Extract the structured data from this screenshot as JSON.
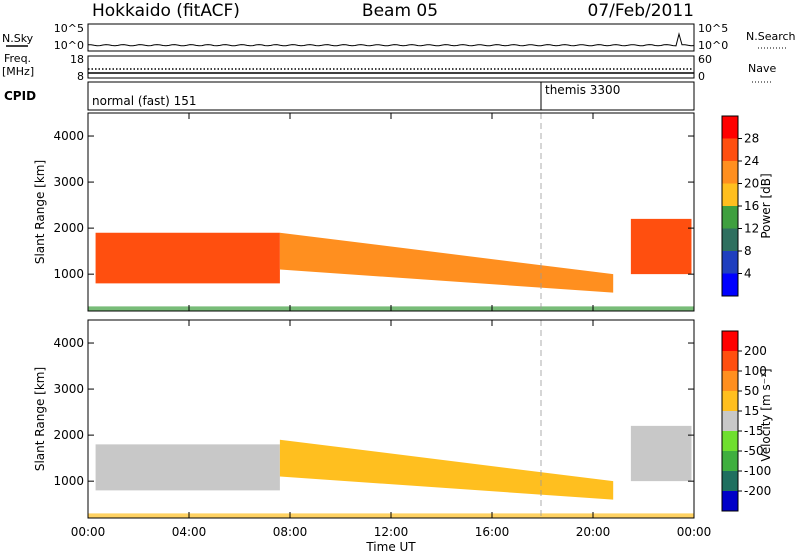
{
  "header": {
    "station": "Hokkaido (fitACF)",
    "beam": "Beam 05",
    "date": "07/Feb/2011"
  },
  "top_panels": {
    "nsky_label": "N.Sky",
    "nsearch_label": "N.Search",
    "ticks_left": [
      "10^5",
      "10^0"
    ],
    "ticks_right": [
      "10^5",
      "10^0"
    ],
    "freq_label": "Freq.",
    "freq_unit": "[MHz]",
    "freq_ticks": [
      "18",
      "8"
    ],
    "nave_label": "Nave",
    "nave_ticks": [
      "60",
      "0"
    ],
    "cpid_label": "CPID",
    "cpid_left": "normal (fast) 151",
    "cpid_right": "themis 3300"
  },
  "colors": {
    "power_scale": [
      "#0000ff",
      "#1f3fbf",
      "#2f6f5f",
      "#3f9f3f",
      "#ffbf1f",
      "#ff8f1f",
      "#ff4f0f",
      "#ff0000"
    ],
    "velocity_scale": [
      "#0000c8",
      "#1f6f5f",
      "#3faf3f",
      "#6fdf2f",
      "#c8c8c8",
      "#ffbf1f",
      "#ff8f1f",
      "#ff4f0f",
      "#ff0000"
    ],
    "ground_scatter": "#c8c8c8"
  },
  "chart_data": [
    {
      "type": "heatmap",
      "title": "",
      "xlabel": "",
      "ylabel": "Slant Range [km]",
      "xlim": [
        0,
        24
      ],
      "ylim": [
        200,
        4500
      ],
      "x_ticks": [
        0,
        4,
        8,
        12,
        16,
        20,
        24
      ],
      "y_ticks": [
        1000,
        2000,
        3000,
        4000
      ],
      "y_tick_labels": [
        "1000",
        "2000",
        "3000",
        "4000"
      ],
      "colorbar": {
        "label": "Power [dB]",
        "range": [
          0,
          32
        ],
        "ticks": [
          "28",
          "24",
          "20",
          "16",
          "12",
          "8",
          "4"
        ]
      },
      "bands": [
        {
          "name": "morning-scatter",
          "t0": 0.3,
          "t1": 7.6,
          "r_lo": 800,
          "r_hi": 1900,
          "value": 26
        },
        {
          "name": "mid-scatter",
          "t0": 7.6,
          "t1": 20.8,
          "r_lo_start": 1100,
          "r_lo_end": 600,
          "r_hi_start": 1900,
          "r_hi_end": 1000,
          "value": 20
        },
        {
          "name": "late-scatter",
          "t0": 21.5,
          "t1": 23.9,
          "r_lo": 1000,
          "r_hi": 2200,
          "value": 26
        }
      ]
    },
    {
      "type": "heatmap",
      "title": "",
      "xlabel": "Time UT",
      "ylabel": "Slant Range [km]",
      "xlim": [
        0,
        24
      ],
      "ylim": [
        200,
        4500
      ],
      "x_ticks": [
        0,
        4,
        8,
        12,
        16,
        20,
        24
      ],
      "x_tick_labels": [
        "00:00",
        "04:00",
        "08:00",
        "12:00",
        "16:00",
        "20:00",
        "00:00"
      ],
      "y_ticks": [
        1000,
        2000,
        3000,
        4000
      ],
      "y_tick_labels": [
        "1000",
        "2000",
        "3000",
        "4000"
      ],
      "colorbar": {
        "label": "Velocity [m s⁻¹]",
        "range": [
          -250,
          250
        ],
        "ticks": [
          "200",
          "100",
          "50",
          "15",
          "-15",
          "-50",
          "-100",
          "-200"
        ]
      },
      "bands": [
        {
          "name": "ground-scatter",
          "t0": 0.3,
          "t1": 7.6,
          "r_lo": 800,
          "r_hi": 1800,
          "value": 0
        },
        {
          "name": "ionospheric-scatter",
          "t0": 7.6,
          "t1": 20.8,
          "r_lo_start": 1100,
          "r_lo_end": 600,
          "r_hi_start": 1900,
          "r_hi_end": 1000,
          "value": 40
        },
        {
          "name": "late-ground-scatter",
          "t0": 21.5,
          "t1": 23.9,
          "r_lo": 1000,
          "r_hi": 2200,
          "value": 0
        }
      ]
    }
  ]
}
